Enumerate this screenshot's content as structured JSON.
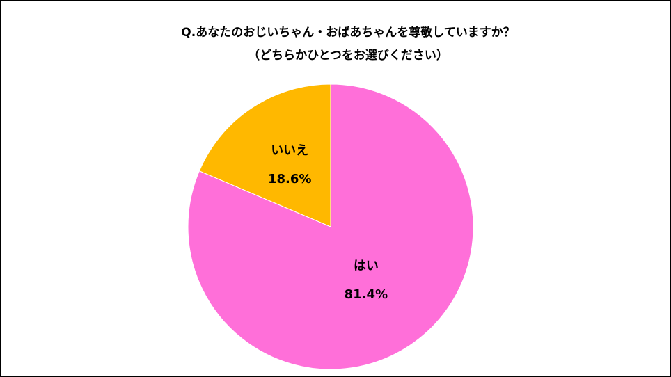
{
  "chart_data": {
    "type": "pie",
    "title": "Q.あなたのおじいちゃん・おばあちゃんを尊敬していますか？",
    "subtitle": "（どちらかひとつをお選びください）",
    "categories": [
      "はい",
      "いいえ"
    ],
    "values": [
      81.4,
      18.6
    ],
    "value_labels": [
      "81.4%",
      "18.6%"
    ],
    "colors": [
      "#ff6fd9",
      "#ffb800"
    ]
  }
}
